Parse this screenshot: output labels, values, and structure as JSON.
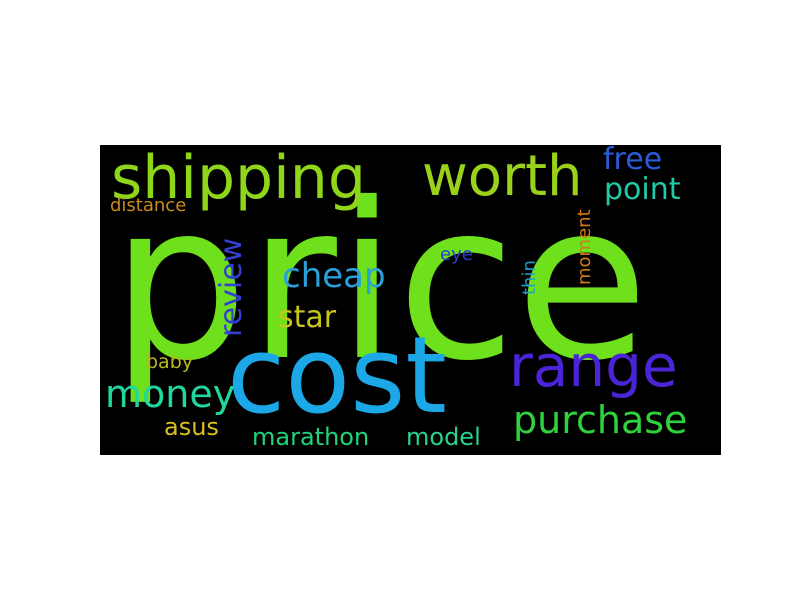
{
  "word_cloud": {
    "background": "#000000",
    "words": [
      {
        "text": "price",
        "color": "#6fe01c"
      },
      {
        "text": "cost",
        "color": "#1ca8e6"
      },
      {
        "text": "shipping",
        "color": "#8fd61a"
      },
      {
        "text": "worth",
        "color": "#9ad11b"
      },
      {
        "text": "range",
        "color": "#4a25d8"
      },
      {
        "text": "purchase",
        "color": "#2fd13c"
      },
      {
        "text": "money",
        "color": "#1fd8a0"
      },
      {
        "text": "free",
        "color": "#2b5bd9"
      },
      {
        "text": "point",
        "color": "#22c9a6"
      },
      {
        "text": "cheap",
        "color": "#2aa0d8"
      },
      {
        "text": "star",
        "color": "#c8c41a"
      },
      {
        "text": "review",
        "color": "#3340d0"
      },
      {
        "text": "marathon",
        "color": "#22d27a"
      },
      {
        "text": "model",
        "color": "#2bd28c"
      },
      {
        "text": "asus",
        "color": "#d6c21a"
      },
      {
        "text": "distance",
        "color": "#c98a1c"
      },
      {
        "text": "baby",
        "color": "#b7b91c"
      },
      {
        "text": "eye",
        "color": "#2b3ccc"
      },
      {
        "text": "thin",
        "color": "#1f9fc8"
      },
      {
        "text": "moment",
        "color": "#d07a1a"
      }
    ]
  }
}
